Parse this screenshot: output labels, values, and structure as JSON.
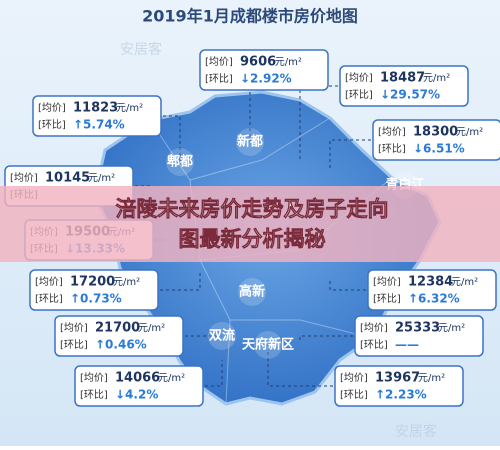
{
  "title": "2019年1月成都楼市房价地图",
  "watermark": "安居客",
  "banner": [
    "涪陵未来房价走势及房子走向",
    "图最新分析揭秘"
  ],
  "labels": {
    "avg": "[均价]",
    "change": "[环比]",
    "unit": "元/m²"
  },
  "districts": [
    "新都",
    "郫都",
    "高新",
    "双流",
    "天府新区",
    "青白江"
  ],
  "callouts": [
    {
      "avg": "9606",
      "change": "↓2.92%"
    },
    {
      "avg": "18487",
      "change": "↓29.57%"
    },
    {
      "avg": "11823",
      "change": "↑5.74%"
    },
    {
      "avg": "18300",
      "change": "↓6.51%"
    },
    {
      "avg": "10145"
    },
    {
      "avg": "19500",
      "change": "↓13.33%"
    },
    {
      "avg": "17200",
      "change": "↑0.73%"
    },
    {
      "avg": "12384",
      "change": "↑6.32%"
    },
    {
      "avg": "21700",
      "change": "↑0.46%"
    },
    {
      "avg": "25333",
      "change": "——"
    },
    {
      "avg": "14066",
      "change": "↓4.2%"
    },
    {
      "avg": "13967",
      "change": "↑2.23%"
    }
  ]
}
